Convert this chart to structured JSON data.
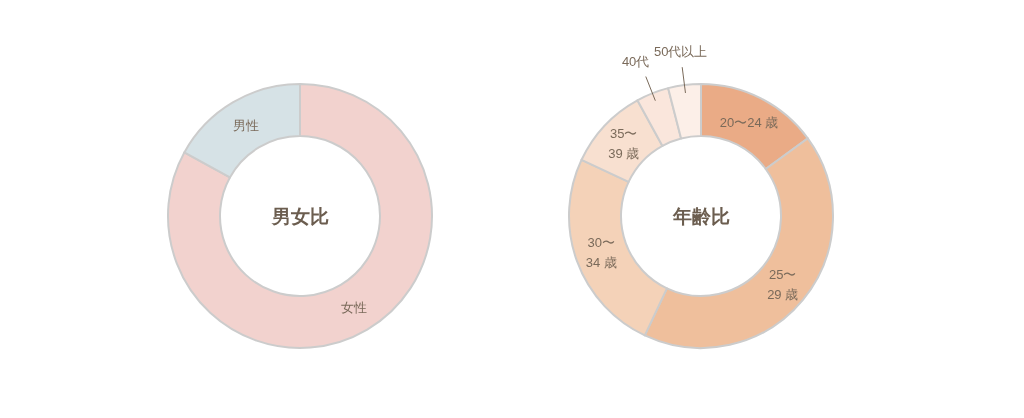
{
  "chart_data": [
    {
      "type": "donut",
      "title": "男女比",
      "categories": [
        "女性",
        "男性"
      ],
      "values": [
        83,
        17
      ],
      "colors": [
        "#f2d2ce",
        "#d6e2e6"
      ]
    },
    {
      "type": "donut",
      "title": "年齢比",
      "categories": [
        "20〜24 歳",
        "25〜\n29 歳",
        "30〜\n34 歳",
        "35〜\n39 歳",
        "40代",
        "50代以上"
      ],
      "values": [
        15,
        42,
        25,
        10,
        4,
        4
      ],
      "colors": [
        "#eaab86",
        "#efbf9c",
        "#f4d2b8",
        "#f8e0d0",
        "#fae6dc",
        "#fcefe8"
      ]
    }
  ]
}
